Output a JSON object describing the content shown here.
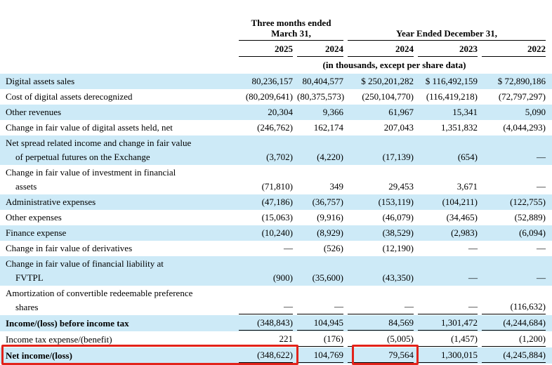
{
  "table": {
    "header": {
      "group1": "Three months ended\nMarch 31,",
      "group2": "Year Ended December 31,",
      "years": [
        "2025",
        "2024",
        "2024",
        "2023",
        "2022"
      ],
      "note": "(in thousands, except per share data)"
    },
    "column_keys": [
      "q1-2025",
      "q1-2024",
      "fy-2024",
      "fy-2023",
      "fy-2022"
    ],
    "rows": [
      {
        "label": "Digital assets sales",
        "values": [
          "80,236,157",
          "80,404,577",
          "$ 250,201,282",
          "$ 116,492,159",
          "$ 72,890,186"
        ],
        "shaded": true
      },
      {
        "label": "Cost of digital assets derecognized",
        "values": [
          "(80,209,641)",
          "(80,375,573)",
          "(250,104,770)",
          "(116,419,218)",
          "(72,797,297)"
        ]
      },
      {
        "label": "Other revenues",
        "values": [
          "20,304",
          "9,366",
          "61,967",
          "15,341",
          "5,090"
        ],
        "shaded": true
      },
      {
        "label": "Change in fair value of digital assets held, net",
        "values": [
          "(246,762)",
          "162,174",
          "207,043",
          "1,351,832",
          "(4,044,293)"
        ]
      },
      {
        "label": "Net spread related income and change in fair value\nof perpetual futures on the Exchange",
        "values": [
          "(3,702)",
          "(4,220)",
          "(17,139)",
          "(654)",
          "—"
        ],
        "shaded": true
      },
      {
        "label": "Change in fair value of investment in financial\nassets",
        "values": [
          "(71,810)",
          "349",
          "29,453",
          "3,671",
          "—"
        ]
      },
      {
        "label": "Administrative expenses",
        "values": [
          "(47,186)",
          "(36,757)",
          "(153,119)",
          "(104,211)",
          "(122,755)"
        ],
        "shaded": true
      },
      {
        "label": "Other expenses",
        "values": [
          "(15,063)",
          "(9,916)",
          "(46,079)",
          "(34,465)",
          "(52,889)"
        ]
      },
      {
        "label": "Finance expense",
        "values": [
          "(10,240)",
          "(8,929)",
          "(38,529)",
          "(2,983)",
          "(6,094)"
        ],
        "shaded": true
      },
      {
        "label": "Change in fair value of derivatives",
        "values": [
          "—",
          "(526)",
          "(12,190)",
          "—",
          "—"
        ]
      },
      {
        "label": "Change in fair value of financial liability at\nFVTPL",
        "values": [
          "(900)",
          "(35,600)",
          "(43,350)",
          "—",
          "—"
        ],
        "shaded": true
      },
      {
        "label": "Amortization of convertible redeemable preference\nshares",
        "values": [
          "—",
          "—",
          "—",
          "—",
          "(116,632)"
        ],
        "underline": true
      },
      {
        "label": "Income/(loss) before income tax",
        "values": [
          "(348,843)",
          "104,945",
          "84,569",
          "1,301,472",
          "(4,244,684)"
        ],
        "shaded": true,
        "bold": true,
        "underline": true
      },
      {
        "label": "Income tax expense/(benefit)",
        "values": [
          "221",
          "(176)",
          "(5,005)",
          "(1,457)",
          "(1,200)"
        ],
        "underline": true
      },
      {
        "label": "Net income/(loss)",
        "values": [
          "(348,622)",
          "104,769",
          "79,564",
          "1,300,015",
          "(4,245,884)"
        ],
        "shaded": true,
        "bold": true,
        "underline": true
      }
    ]
  },
  "colors": {
    "row_highlight": "#cdeaf7",
    "annotation_red": "#e2231a",
    "rule": "#000000"
  },
  "annotations": {
    "boxes": [
      {
        "name": "highlight-box-net-income-q1-2025"
      },
      {
        "name": "highlight-box-net-income-fy-2024"
      }
    ]
  }
}
